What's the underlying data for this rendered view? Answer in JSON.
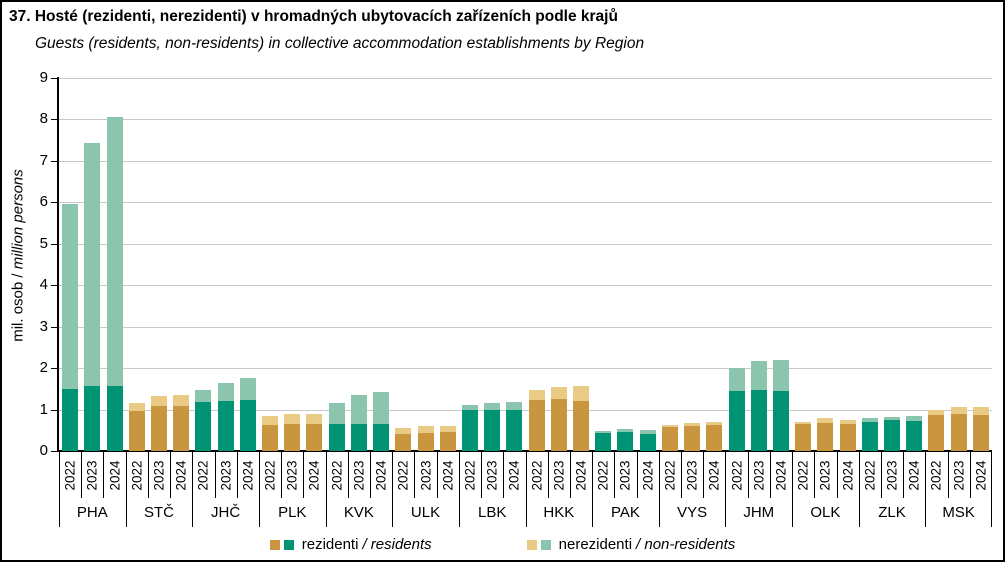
{
  "title": "37. Hosté (rezidenti, nerezidenti) v hromadných ubytovacích zařízeních podle krajů",
  "subtitle": "Guests (residents, non-residents) in collective accommodation establishments by Region",
  "y_axis": {
    "title_cs": "mil. osob / ",
    "title_en_italic": "million persons",
    "min": 0,
    "max": 9,
    "step": 1
  },
  "legend": {
    "residents": {
      "cs": "rezidenti",
      "en_italic": "/ residents"
    },
    "non_residents": {
      "cs": "nerezidenti",
      "en_italic": "/ non-residents"
    }
  },
  "colors": {
    "residents_green": "#009374",
    "non_residents_green": "#8CC5AE",
    "residents_gold": "#C9953E",
    "non_residents_gold": "#E9CB85",
    "gridline": "#C9C9C9",
    "axis": "#000000"
  },
  "chart_data": {
    "type": "bar",
    "stacked": true,
    "title": "37. Hosté (rezidenti, nerezidenti) v hromadných ubytovacích zařízeních podle krajů",
    "subtitle_en": "Guests (residents, non-residents) in collective accommodation establishments by Region",
    "ylabel": "mil. osob / million persons",
    "ylim": [
      0,
      9
    ],
    "grid": "horizontal",
    "legend_position": "bottom",
    "years": [
      "2022",
      "2023",
      "2024"
    ],
    "series_names": [
      "rezidenti / residents",
      "nerezidenti / non-residents"
    ],
    "regions": [
      {
        "code": "PHA",
        "palette": "green",
        "residents": [
          1.5,
          1.57,
          1.57
        ],
        "non_residents": [
          4.45,
          5.86,
          6.5
        ]
      },
      {
        "code": "STČ",
        "palette": "gold",
        "residents": [
          0.97,
          1.08,
          1.08
        ],
        "non_residents": [
          0.19,
          0.25,
          0.28
        ]
      },
      {
        "code": "JHČ",
        "palette": "green",
        "residents": [
          1.18,
          1.21,
          1.24
        ],
        "non_residents": [
          0.3,
          0.43,
          0.51
        ]
      },
      {
        "code": "PLK",
        "palette": "gold",
        "residents": [
          0.62,
          0.65,
          0.65
        ],
        "non_residents": [
          0.23,
          0.24,
          0.24
        ]
      },
      {
        "code": "KVK",
        "palette": "green",
        "residents": [
          0.64,
          0.66,
          0.66
        ],
        "non_residents": [
          0.53,
          0.7,
          0.76
        ]
      },
      {
        "code": "ULK",
        "palette": "gold",
        "residents": [
          0.41,
          0.43,
          0.45
        ],
        "non_residents": [
          0.15,
          0.17,
          0.15
        ]
      },
      {
        "code": "LBK",
        "palette": "green",
        "residents": [
          0.99,
          1.0,
          1.0
        ],
        "non_residents": [
          0.13,
          0.17,
          0.19
        ]
      },
      {
        "code": "HKK",
        "palette": "gold",
        "residents": [
          1.24,
          1.26,
          1.21
        ],
        "non_residents": [
          0.23,
          0.28,
          0.35
        ]
      },
      {
        "code": "PAK",
        "palette": "green",
        "residents": [
          0.44,
          0.47,
          0.42
        ],
        "non_residents": [
          0.05,
          0.06,
          0.09
        ]
      },
      {
        "code": "VYS",
        "palette": "gold",
        "residents": [
          0.57,
          0.6,
          0.62
        ],
        "non_residents": [
          0.07,
          0.07,
          0.08
        ]
      },
      {
        "code": "JHM",
        "palette": "green",
        "residents": [
          1.46,
          1.48,
          1.45
        ],
        "non_residents": [
          0.54,
          0.69,
          0.75
        ]
      },
      {
        "code": "OLK",
        "palette": "gold",
        "residents": [
          0.64,
          0.67,
          0.66
        ],
        "non_residents": [
          0.07,
          0.12,
          0.08
        ]
      },
      {
        "code": "ZLK",
        "palette": "green",
        "residents": [
          0.71,
          0.74,
          0.73
        ],
        "non_residents": [
          0.08,
          0.09,
          0.12
        ]
      },
      {
        "code": "MSK",
        "palette": "gold",
        "residents": [
          0.87,
          0.89,
          0.86
        ],
        "non_residents": [
          0.12,
          0.17,
          0.2
        ]
      }
    ]
  }
}
